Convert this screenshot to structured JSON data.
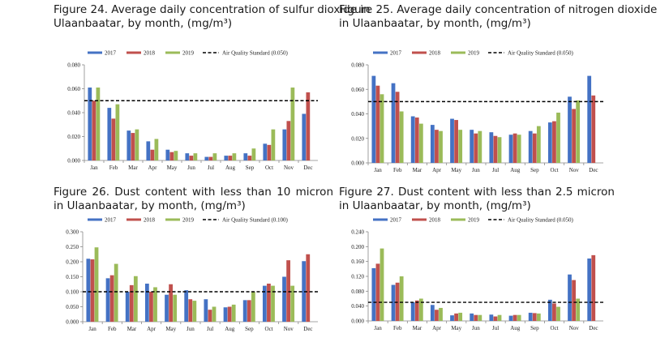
{
  "colors": {
    "2017": "#4472C4",
    "2018": "#C0504D",
    "2019": "#9BBB59",
    "standard": "#000000"
  },
  "chart_data": [
    {
      "type": "bar",
      "title": "Figure 24. Average daily concentration of sulfur dioxide in Ulaanbaatar, by month, (mg/m³)",
      "categories": [
        "Jan",
        "Feb",
        "Mar",
        "Apr",
        "May",
        "Jun",
        "Jul",
        "Aug",
        "Sep",
        "Oct",
        "Nov",
        "Dec"
      ],
      "series": [
        {
          "name": "2017",
          "values": [
            0.061,
            0.044,
            0.025,
            0.016,
            0.009,
            0.006,
            0.003,
            0.004,
            0.006,
            0.014,
            0.026,
            0.039
          ]
        },
        {
          "name": "2018",
          "values": [
            0.05,
            0.035,
            0.023,
            0.009,
            0.007,
            0.004,
            0.003,
            0.004,
            0.004,
            0.013,
            0.033,
            0.057
          ]
        },
        {
          "name": "2019",
          "values": [
            0.061,
            0.047,
            0.026,
            0.018,
            0.008,
            0.006,
            0.006,
            0.006,
            0.01,
            0.026,
            0.061,
            null
          ]
        }
      ],
      "reference_line": {
        "name": "Air Quality Standard (0.050)",
        "value": 0.05
      },
      "ylim": [
        0,
        0.08
      ],
      "yticks": [
        "0.000",
        "0.020",
        "0.040",
        "0.060",
        "0.080"
      ],
      "legend": [
        "2017",
        "2018",
        "2019",
        "Air Quality Standard (0.050)"
      ],
      "legend_position": "top",
      "grid": false
    },
    {
      "type": "bar",
      "title": "Figure 25. Average daily concentration of nitrogen dioxide in Ulaanbaatar, by month, (mg/m³)",
      "categories": [
        "Jan",
        "Feb",
        "Mar",
        "Apr",
        "May",
        "Jun",
        "Jul",
        "Aug",
        "Sep",
        "Oct",
        "Nov",
        "Dec"
      ],
      "series": [
        {
          "name": "2017",
          "values": [
            0.071,
            0.065,
            0.038,
            0.031,
            0.036,
            0.027,
            0.025,
            0.023,
            0.026,
            0.033,
            0.054,
            0.071
          ]
        },
        {
          "name": "2018",
          "values": [
            0.063,
            0.058,
            0.037,
            0.027,
            0.035,
            0.024,
            0.022,
            0.024,
            0.024,
            0.034,
            0.044,
            0.055
          ]
        },
        {
          "name": "2019",
          "values": [
            0.056,
            0.042,
            0.032,
            0.026,
            0.027,
            0.026,
            0.021,
            0.023,
            0.03,
            0.041,
            0.051,
            null
          ]
        }
      ],
      "reference_line": {
        "name": "Air Quality Standard (0.050)",
        "value": 0.05
      },
      "ylim": [
        0,
        0.08
      ],
      "yticks": [
        "0.000",
        "0.020",
        "0.040",
        "0.060",
        "0.080"
      ],
      "legend": [
        "2017",
        "2018",
        "2019",
        "Air Quality Standard (0.050)"
      ],
      "legend_position": "top",
      "grid": false
    },
    {
      "type": "bar",
      "title": "Figure 26. Dust content with less than 10 micron in Ulaanbaatar, by month, (mg/m³)",
      "categories": [
        "Jan",
        "Feb",
        "Mar",
        "Apr",
        "May",
        "Jun",
        "Jul",
        "Aug",
        "Sep",
        "Oct",
        "Nov",
        "Dec"
      ],
      "series": [
        {
          "name": "2017",
          "values": [
            0.21,
            0.145,
            0.1,
            0.127,
            0.09,
            0.105,
            0.075,
            0.048,
            0.072,
            0.12,
            0.15,
            0.202
          ]
        },
        {
          "name": "2018",
          "values": [
            0.208,
            0.155,
            0.122,
            0.1,
            0.125,
            0.075,
            0.04,
            0.05,
            0.072,
            0.127,
            0.205,
            0.225
          ]
        },
        {
          "name": "2019",
          "values": [
            0.248,
            0.193,
            0.152,
            0.115,
            0.09,
            0.07,
            0.05,
            0.057,
            0.1,
            0.12,
            0.12,
            null
          ]
        }
      ],
      "reference_line": {
        "name": "Air Quality Standard (0.100)",
        "value": 0.1
      },
      "ylim": [
        0,
        0.3
      ],
      "yticks": [
        "0.000",
        "0.050",
        "0.100",
        "0.150",
        "0.200",
        "0.250",
        "0.300"
      ],
      "legend": [
        "2017",
        "2018",
        "2019",
        "Air Quality Standard (0.100)"
      ],
      "legend_position": "top",
      "grid": false
    },
    {
      "type": "bar",
      "title": "Figure 27. Dust content with less than 2.5 micron in Ulaanbaatar, by month, (mg/m³)",
      "categories": [
        "Jan",
        "Feb",
        "Mar",
        "Apr",
        "May",
        "Jun",
        "Jul",
        "Aug",
        "Sep",
        "Oct",
        "Nov",
        "Dec"
      ],
      "series": [
        {
          "name": "2017",
          "values": [
            0.142,
            0.097,
            0.05,
            0.043,
            0.015,
            0.02,
            0.017,
            0.014,
            0.022,
            0.057,
            0.125,
            0.168
          ]
        },
        {
          "name": "2018",
          "values": [
            0.154,
            0.103,
            0.055,
            0.03,
            0.02,
            0.016,
            0.012,
            0.016,
            0.021,
            0.047,
            0.11,
            0.177
          ]
        },
        {
          "name": "2019",
          "values": [
            0.195,
            0.12,
            0.06,
            0.035,
            0.022,
            0.016,
            0.016,
            0.016,
            0.02,
            0.038,
            0.06,
            null
          ]
        }
      ],
      "reference_line": {
        "name": "Air Quality Standard (0.050)",
        "value": 0.05
      },
      "ylim": [
        0,
        0.24
      ],
      "yticks": [
        "0.000",
        "0.040",
        "0.080",
        "0.120",
        "0.160",
        "0.200",
        "0.240"
      ],
      "legend": [
        "2017",
        "2018",
        "2019",
        "Air Quality Standard (0.050)"
      ],
      "legend_position": "top",
      "grid": false
    }
  ]
}
